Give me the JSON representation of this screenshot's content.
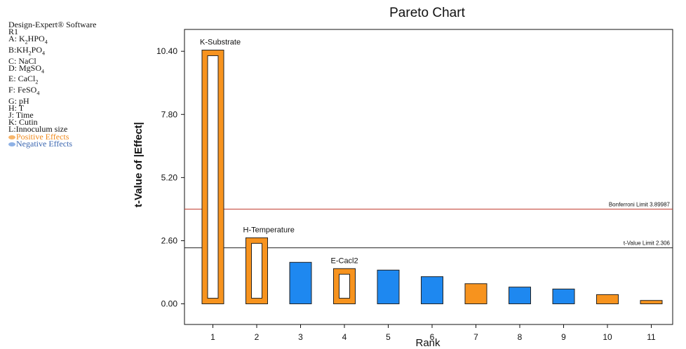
{
  "legend": {
    "software": "Design-Expert® Software",
    "response": "R1",
    "factors": [
      "A: K2HPO4",
      "B:KH2PO4",
      "C: NaCl",
      "D: MgSO4",
      "E: CaCl2",
      "F: FeSO4",
      "G: pH",
      "H: T",
      "J: Time",
      "K: Cutin",
      "L:Innoculum size"
    ],
    "positive_label": "Positive Effects",
    "negative_label": "Negative Effects"
  },
  "colors": {
    "positive": "#f7931e",
    "negative": "#1e88f0",
    "bonferroni": "#c0392b",
    "tlimit": "#222222"
  },
  "chart_data": {
    "type": "bar",
    "title": "Pareto Chart",
    "xlabel": "Rank",
    "ylabel": "t-Value of |Effect|",
    "categories": [
      "1",
      "2",
      "3",
      "4",
      "5",
      "6",
      "7",
      "8",
      "9",
      "10",
      "11"
    ],
    "values": [
      10.45,
      2.72,
      1.71,
      1.45,
      1.39,
      1.12,
      0.83,
      0.69,
      0.61,
      0.38,
      0.14
    ],
    "signs": [
      "positive",
      "positive",
      "negative",
      "positive",
      "negative",
      "negative",
      "positive",
      "negative",
      "negative",
      "positive",
      "positive"
    ],
    "hollow": [
      true,
      true,
      false,
      true,
      false,
      false,
      false,
      false,
      false,
      false,
      false
    ],
    "bar_labels": [
      "K-Substrate",
      "H-Temperature",
      "",
      "E-Cacl2",
      "",
      "",
      "",
      "",
      "",
      "",
      ""
    ],
    "yticks": [
      "0.00",
      "2.60",
      "5.20",
      "7.80",
      "10.40"
    ],
    "ylim": [
      -0.85,
      11.3
    ],
    "reference_lines": [
      {
        "label": "Bonferroni Limit 3.89987",
        "value": 3.89987,
        "kind": "bonferroni"
      },
      {
        "label": "t-Value Limit 2.306",
        "value": 2.306,
        "kind": "tlimit"
      }
    ]
  }
}
